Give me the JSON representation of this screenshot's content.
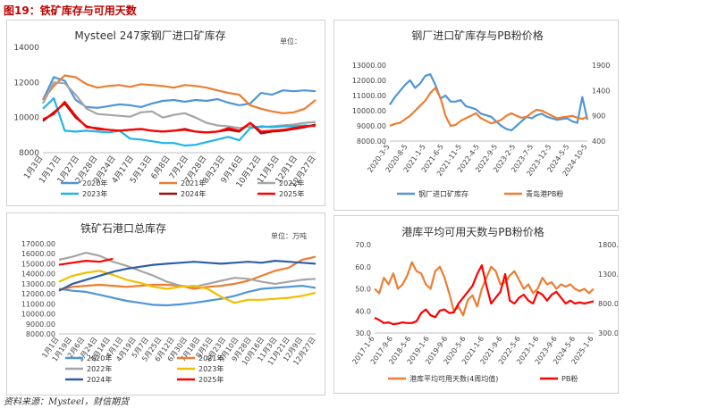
{
  "figure_title": "图19：铁矿库存与可用天数",
  "source": "资料来源：Mysteel，财信期货",
  "chart_data": [
    {
      "id": "c1",
      "type": "line",
      "title": "Mysteel 247家钢厂进口矿库存",
      "unit_label": "单位：",
      "ylim": [
        8000,
        14000
      ],
      "yticks": [
        "8000",
        "10000",
        "12000",
        "14000"
      ],
      "ytick_values": [
        8000,
        10000,
        12000,
        14000
      ],
      "xticks": [
        "1月3日",
        "1月17日",
        "1月27日",
        "2月28日",
        "3月24日",
        "4月17日",
        "5月13日",
        "6月8日",
        "7月2日",
        "7月28日",
        "8月23日",
        "9月16日",
        "10月12日",
        "11月5日",
        "12月1日",
        "12月27日"
      ],
      "series": [
        {
          "name": "2020年",
          "color": "#4f96d6",
          "values": [
            11000,
            12300,
            12100,
            11000,
            10600,
            10550,
            10650,
            10750,
            10700,
            10600,
            10800,
            10950,
            11000,
            10900,
            11000,
            10950,
            11050,
            10850,
            10700,
            10800,
            11400,
            11300,
            11550,
            11500,
            11550,
            11500
          ]
        },
        {
          "name": "2021年",
          "color": "#ed7d31",
          "values": [
            11000,
            11800,
            12400,
            12300,
            11900,
            11700,
            11800,
            11850,
            11750,
            11900,
            11850,
            11800,
            11700,
            11850,
            11800,
            11700,
            11550,
            11400,
            11300,
            10700,
            10500,
            10350,
            10250,
            10300,
            10500,
            11000
          ]
        },
        {
          "name": "2022年",
          "color": "#a5a5a5",
          "values": [
            10800,
            12000,
            11950,
            11300,
            10500,
            10200,
            10150,
            10100,
            10050,
            10300,
            10350,
            10000,
            10150,
            10250,
            10000,
            9700,
            9550,
            9500,
            9400,
            9500,
            9450,
            9500,
            9550,
            9600,
            9700,
            9750
          ]
        },
        {
          "name": "2023年",
          "color": "#1fb5e6",
          "values": [
            10500,
            11100,
            9250,
            9200,
            9250,
            9200,
            9150,
            9250,
            8800,
            8750,
            8650,
            8550,
            8550,
            8400,
            8450,
            8600,
            8750,
            8900,
            8700,
            9400,
            9500,
            9450,
            9500,
            9500,
            9550,
            9500
          ]
        },
        {
          "name": "2024年",
          "color": "#9b0f0f",
          "values": [
            9800,
            10300,
            10800,
            10000,
            9500,
            9350,
            9300,
            9250,
            9300,
            9350,
            9250,
            9200,
            9250,
            9350,
            9200,
            9150,
            9200,
            9300,
            9200,
            9700,
            9100,
            9200,
            9250,
            9350,
            9450,
            9600
          ]
        },
        {
          "name": "2025年",
          "color": "#ff0000",
          "values": [
            9900,
            10200,
            10900,
            10100,
            9450,
            9400,
            9300,
            9250,
            9300,
            9350,
            9250,
            9200,
            9250,
            9300,
            9200,
            9150,
            9200,
            9400,
            9250,
            9700,
            9200,
            9250,
            9300,
            9400,
            9500,
            9550
          ]
        }
      ]
    },
    {
      "id": "c2",
      "type": "line",
      "title": "钢厂进口矿库存与PB粉价格",
      "ylim": [
        8000,
        13000
      ],
      "yticks": [
        "8000.00",
        "9000.00",
        "10000.00",
        "11000.00",
        "12000.00",
        "13000.00"
      ],
      "ytick_values": [
        8000,
        9000,
        10000,
        11000,
        12000,
        13000
      ],
      "y2lim": [
        400,
        1900
      ],
      "y2ticks": [
        "400",
        "900",
        "1400",
        "1900"
      ],
      "y2tick_values": [
        400,
        900,
        1400,
        1900
      ],
      "xticks": [
        "2020-3-5",
        "2020-8-5",
        "2021-1-5",
        "2021-6-5",
        "2021-11-5",
        "2022-4-5",
        "2022-9-5",
        "2023-2-5",
        "2023-7-5",
        "2023-12-5",
        "2024-5-5",
        "2024-10-5"
      ],
      "series": [
        {
          "name": "钢厂进口矿库存",
          "color": "#4f96d6",
          "axis": "left",
          "values": [
            10400,
            10900,
            11300,
            11700,
            12000,
            11500,
            11800,
            12300,
            12400,
            11700,
            10800,
            11000,
            10600,
            10600,
            10700,
            10300,
            10200,
            10100,
            9800,
            9700,
            9600,
            9300,
            9000,
            8800,
            8700,
            9000,
            9300,
            9600,
            9500,
            9700,
            9800,
            9600,
            9500,
            9400,
            9450,
            9500,
            9300,
            9200,
            10900,
            9400
          ]
        },
        {
          "name": "青岛港PB粉",
          "color": "#ed7d31",
          "axis": "right",
          "values": [
            700,
            740,
            760,
            830,
            900,
            1000,
            1100,
            1200,
            1350,
            1450,
            1250,
            900,
            700,
            720,
            800,
            850,
            900,
            950,
            850,
            800,
            750,
            780,
            820,
            900,
            950,
            900,
            860,
            880,
            960,
            1020,
            1000,
            950,
            900,
            850,
            870,
            880,
            900,
            860,
            840,
            880
          ]
        }
      ]
    },
    {
      "id": "c3",
      "type": "line",
      "title": "铁矿石港口总库存",
      "unit_label": "单位：万吨",
      "ylim": [
        8000,
        17000
      ],
      "yticks": [
        "8000.00",
        "9000.00",
        "10000.00",
        "11000.00",
        "12000.00",
        "13000.00",
        "14000.00",
        "15000.00",
        "16000.00",
        "17000.00"
      ],
      "ytick_values": [
        8000,
        9000,
        10000,
        11000,
        12000,
        13000,
        14000,
        15000,
        16000,
        17000
      ],
      "xticks": [
        "1月1日",
        "1月19日",
        "2月6日",
        "2月24日",
        "3月14日",
        "4月1日",
        "4月19日",
        "5月7日",
        "5月25日",
        "6月12日",
        "6月30日",
        "7月18日",
        "8月5日",
        "8月23日",
        "9月10日",
        "9月28日",
        "10月16日",
        "11月3日",
        "11月21日",
        "12月9日",
        "12月27日"
      ],
      "series": [
        {
          "name": "2020年",
          "color": "#4f96d6",
          "values": [
            12500,
            12300,
            12200,
            11900,
            11600,
            11300,
            11100,
            10900,
            10850,
            10950,
            11100,
            11300,
            11500,
            11800,
            12200,
            12500,
            12600,
            12700,
            12800,
            12600
          ]
        },
        {
          "name": "2021年",
          "color": "#ed7d31",
          "values": [
            12400,
            12700,
            12800,
            12900,
            12800,
            12700,
            12800,
            12900,
            12900,
            12800,
            12500,
            12700,
            12800,
            13000,
            13300,
            13800,
            14300,
            14600,
            15400,
            15700
          ]
        },
        {
          "name": "2022年",
          "color": "#a5a5a5",
          "values": [
            15400,
            15700,
            16100,
            15800,
            15200,
            14800,
            14300,
            13800,
            13200,
            12800,
            12700,
            13000,
            13300,
            13600,
            13500,
            13200,
            13000,
            13200,
            13400,
            13500
          ]
        },
        {
          "name": "2023年",
          "color": "#f0c000",
          "values": [
            13200,
            13800,
            14100,
            14300,
            13900,
            13400,
            13100,
            12700,
            12500,
            12700,
            12800,
            12500,
            11700,
            11100,
            11400,
            11400,
            11500,
            11600,
            11800,
            12100
          ]
        },
        {
          "name": "2024年",
          "color": "#2e5ea8",
          "values": [
            12300,
            13000,
            13400,
            13800,
            14200,
            14500,
            14700,
            14900,
            15000,
            15100,
            15200,
            15100,
            15000,
            15100,
            15200,
            15100,
            15300,
            15200,
            15100,
            15000
          ]
        },
        {
          "name": "2025年",
          "color": "#ff0000",
          "values": [
            14900,
            15100,
            15300,
            15200,
            15500
          ]
        }
      ]
    },
    {
      "id": "c4",
      "type": "line",
      "title": "港库平均可用天数与PB粉价格",
      "ylim": [
        30,
        70
      ],
      "yticks": [
        "30.0",
        "40.0",
        "50.0",
        "60.0",
        "70.0"
      ],
      "ytick_values": [
        30,
        40,
        50,
        60,
        70
      ],
      "y2lim": [
        300,
        1800
      ],
      "y2ticks": [
        "300.0",
        "800.0",
        "1300.0",
        "1800.0"
      ],
      "y2tick_values": [
        300,
        800,
        1300,
        1800
      ],
      "xticks": [
        "2017-1-6",
        "2017-9-6",
        "2018-5-6",
        "2019-1-6",
        "2019-9-6",
        "2020-5-6",
        "2021-1-6",
        "2021-9-6",
        "2022-5-6",
        "2023-1-6",
        "2023-9-6",
        "2024-5-6",
        "2025-1-6"
      ],
      "series": [
        {
          "name": "港库平均可用天数(4周均值)",
          "color": "#ed7d31",
          "axis": "left",
          "values": [
            50,
            48,
            55,
            52,
            57,
            50,
            52,
            56,
            62,
            58,
            57,
            52,
            50,
            58,
            60,
            55,
            48,
            40,
            42,
            38,
            45,
            47,
            42,
            50,
            55,
            60,
            58,
            52,
            53,
            56,
            58,
            54,
            50,
            52,
            48,
            50,
            55,
            52,
            53,
            50,
            52,
            51,
            52,
            50,
            49,
            50,
            48,
            50
          ]
        },
        {
          "name": "PB粉",
          "color": "#ff0000",
          "axis": "right",
          "values": [
            560,
            520,
            470,
            480,
            450,
            460,
            480,
            470,
            470,
            500,
            640,
            700,
            600,
            570,
            680,
            700,
            640,
            650,
            800,
            900,
            1000,
            1100,
            1300,
            1450,
            1100,
            800,
            900,
            1000,
            1300,
            850,
            800,
            900,
            950,
            850,
            800,
            1000,
            950,
            850,
            950,
            1000,
            900,
            800,
            850,
            800,
            820,
            800,
            820,
            840
          ]
        }
      ]
    }
  ]
}
